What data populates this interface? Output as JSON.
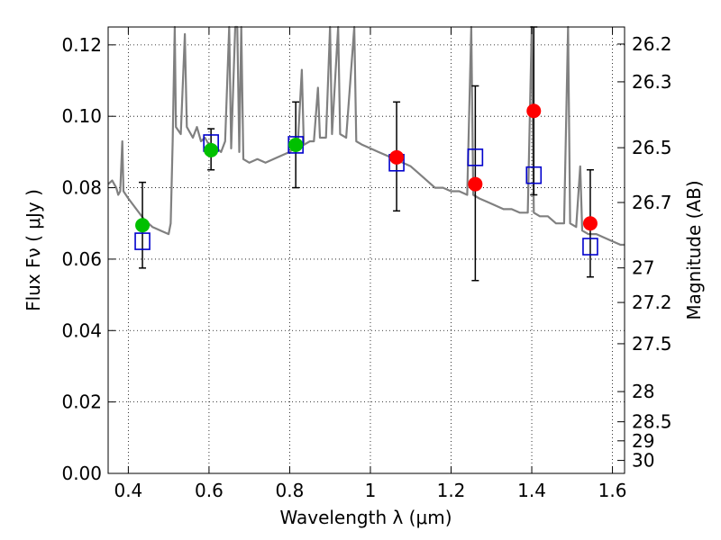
{
  "chart_data": {
    "type": "scatter",
    "title": "",
    "xlabel": "Wavelength  λ (μm)",
    "ylabel": "Flux  Fν  ( μJy )",
    "right_ylabel": "Magnitude (AB)",
    "xlim": [
      0.35,
      1.63
    ],
    "ylim": [
      0.0,
      0.125
    ],
    "grid": true,
    "x_ticks": [
      {
        "v": 0.4,
        "label": "0.4"
      },
      {
        "v": 0.6,
        "label": "0.6"
      },
      {
        "v": 0.8,
        "label": "0.8"
      },
      {
        "v": 1.0,
        "label": "1"
      },
      {
        "v": 1.2,
        "label": "1.2"
      },
      {
        "v": 1.4,
        "label": "1.4"
      },
      {
        "v": 1.6,
        "label": "1.6"
      }
    ],
    "y_ticks": [
      {
        "v": 0.0,
        "label": "0.00"
      },
      {
        "v": 0.02,
        "label": "0.02"
      },
      {
        "v": 0.04,
        "label": "0.04"
      },
      {
        "v": 0.06,
        "label": "0.06"
      },
      {
        "v": 0.08,
        "label": "0.08"
      },
      {
        "v": 0.1,
        "label": "0.10"
      },
      {
        "v": 0.12,
        "label": "0.12"
      }
    ],
    "right_ticks": [
      {
        "mag": 26.2,
        "label": "26.2"
      },
      {
        "mag": 26.3,
        "label": "26.3"
      },
      {
        "mag": 26.5,
        "label": "26.5"
      },
      {
        "mag": 26.7,
        "label": "26.7"
      },
      {
        "mag": 27.0,
        "label": "27"
      },
      {
        "mag": 27.2,
        "label": "27.2"
      },
      {
        "mag": 27.5,
        "label": "27.5"
      },
      {
        "mag": 28.0,
        "label": "28"
      },
      {
        "mag": 28.5,
        "label": "28.5"
      },
      {
        "mag": 29.0,
        "label": "29"
      },
      {
        "mag": 30.0,
        "label": "30"
      }
    ],
    "spectrum": {
      "color": "#808080",
      "points": [
        [
          0.35,
          0.081
        ],
        [
          0.36,
          0.082
        ],
        [
          0.37,
          0.08
        ],
        [
          0.375,
          0.078
        ],
        [
          0.38,
          0.079
        ],
        [
          0.385,
          0.093
        ],
        [
          0.388,
          0.079
        ],
        [
          0.4,
          0.077
        ],
        [
          0.42,
          0.074
        ],
        [
          0.44,
          0.071
        ],
        [
          0.46,
          0.069
        ],
        [
          0.48,
          0.068
        ],
        [
          0.5,
          0.067
        ],
        [
          0.505,
          0.07
        ],
        [
          0.51,
          0.093
        ],
        [
          0.515,
          0.125
        ],
        [
          0.518,
          0.097
        ],
        [
          0.53,
          0.095
        ],
        [
          0.54,
          0.123
        ],
        [
          0.545,
          0.097
        ],
        [
          0.56,
          0.094
        ],
        [
          0.57,
          0.097
        ],
        [
          0.58,
          0.093
        ],
        [
          0.59,
          0.094
        ],
        [
          0.6,
          0.092
        ],
        [
          0.62,
          0.091
        ],
        [
          0.63,
          0.09
        ],
        [
          0.64,
          0.093
        ],
        [
          0.65,
          0.125
        ],
        [
          0.655,
          0.091
        ],
        [
          0.665,
          0.125
        ],
        [
          0.67,
          0.125
        ],
        [
          0.675,
          0.09
        ],
        [
          0.68,
          0.125
        ],
        [
          0.685,
          0.088
        ],
        [
          0.7,
          0.087
        ],
        [
          0.72,
          0.088
        ],
        [
          0.74,
          0.087
        ],
        [
          0.76,
          0.088
        ],
        [
          0.78,
          0.089
        ],
        [
          0.8,
          0.09
        ],
        [
          0.82,
          0.092
        ],
        [
          0.83,
          0.113
        ],
        [
          0.835,
          0.092
        ],
        [
          0.85,
          0.093
        ],
        [
          0.86,
          0.093
        ],
        [
          0.87,
          0.108
        ],
        [
          0.875,
          0.094
        ],
        [
          0.89,
          0.094
        ],
        [
          0.9,
          0.125
        ],
        [
          0.905,
          0.095
        ],
        [
          0.92,
          0.125
        ],
        [
          0.925,
          0.095
        ],
        [
          0.94,
          0.094
        ],
        [
          0.96,
          0.125
        ],
        [
          0.965,
          0.093
        ],
        [
          0.98,
          0.092
        ],
        [
          1.0,
          0.091
        ],
        [
          1.02,
          0.09
        ],
        [
          1.04,
          0.089
        ],
        [
          1.06,
          0.088
        ],
        [
          1.08,
          0.087
        ],
        [
          1.1,
          0.086
        ],
        [
          1.12,
          0.084
        ],
        [
          1.14,
          0.082
        ],
        [
          1.16,
          0.08
        ],
        [
          1.18,
          0.08
        ],
        [
          1.2,
          0.079
        ],
        [
          1.22,
          0.079
        ],
        [
          1.24,
          0.078
        ],
        [
          1.25,
          0.125
        ],
        [
          1.255,
          0.078
        ],
        [
          1.27,
          0.077
        ],
        [
          1.29,
          0.076
        ],
        [
          1.31,
          0.075
        ],
        [
          1.33,
          0.074
        ],
        [
          1.35,
          0.074
        ],
        [
          1.37,
          0.073
        ],
        [
          1.39,
          0.073
        ],
        [
          1.4,
          0.125
        ],
        [
          1.405,
          0.073
        ],
        [
          1.42,
          0.072
        ],
        [
          1.44,
          0.072
        ],
        [
          1.46,
          0.07
        ],
        [
          1.48,
          0.07
        ],
        [
          1.49,
          0.125
        ],
        [
          1.495,
          0.07
        ],
        [
          1.51,
          0.069
        ],
        [
          1.52,
          0.086
        ],
        [
          1.525,
          0.068
        ],
        [
          1.54,
          0.067
        ],
        [
          1.56,
          0.067
        ],
        [
          1.58,
          0.066
        ],
        [
          1.6,
          0.065
        ],
        [
          1.62,
          0.064
        ],
        [
          1.63,
          0.064
        ]
      ]
    },
    "series": [
      {
        "marker": "circle",
        "points": [
          {
            "x": 0.435,
            "y": 0.0695,
            "color": "#00c000",
            "err_low": 0.0575,
            "err_high": 0.0815
          },
          {
            "x": 0.605,
            "y": 0.0905,
            "color": "#00c000",
            "err_low": 0.085,
            "err_high": 0.0965
          },
          {
            "x": 0.815,
            "y": 0.092,
            "color": "#00c000",
            "err_low": 0.08,
            "err_high": 0.104
          },
          {
            "x": 1.065,
            "y": 0.0885,
            "color": "#ff0000",
            "err_low": 0.0735,
            "err_high": 0.104
          },
          {
            "x": 1.26,
            "y": 0.081,
            "color": "#ff0000",
            "err_low": 0.054,
            "err_high": 0.1085
          },
          {
            "x": 1.405,
            "y": 0.1015,
            "color": "#ff0000",
            "err_low": 0.078,
            "err_high": 0.125
          },
          {
            "x": 1.545,
            "y": 0.07,
            "color": "#ff0000",
            "err_low": 0.055,
            "err_high": 0.085
          }
        ]
      },
      {
        "marker": "open-square",
        "color": "#0000cc",
        "points": [
          {
            "x": 0.435,
            "y": 0.065
          },
          {
            "x": 0.605,
            "y": 0.0925
          },
          {
            "x": 0.815,
            "y": 0.092
          },
          {
            "x": 1.065,
            "y": 0.087
          },
          {
            "x": 1.26,
            "y": 0.0885
          },
          {
            "x": 1.405,
            "y": 0.0835
          },
          {
            "x": 1.545,
            "y": 0.0635
          }
        ]
      }
    ]
  }
}
